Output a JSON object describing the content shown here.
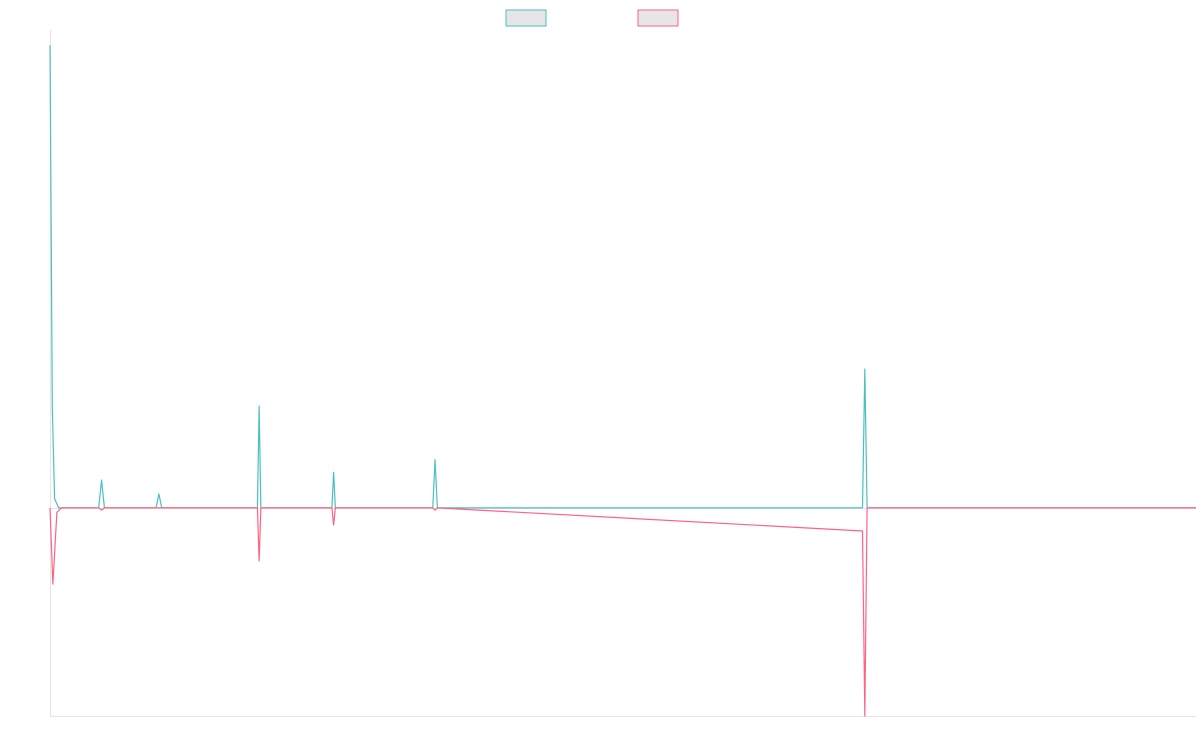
{
  "chart_data": {
    "type": "line",
    "title": "",
    "xlabel": "",
    "ylabel": "",
    "x_range": [
      0,
      200
    ],
    "ylim": [
      -0.45,
      1.02
    ],
    "grid": false,
    "legend_position": "top-center",
    "series": [
      {
        "legend_swatch": "teal-swatch",
        "color": "#4bc0c0",
        "fill": "#e6e6e6",
        "x": [
          0,
          0.4,
          0.8,
          1.5,
          2,
          8.5,
          9,
          9.5,
          18.5,
          19,
          19.5,
          36.2,
          36.5,
          36.8,
          49.2,
          49.5,
          49.8,
          66.8,
          67.2,
          67.6,
          141.8,
          142.2,
          142.6,
          200
        ],
        "y": [
          1.0,
          0.22,
          0.02,
          0.0,
          0.0,
          0.0,
          0.06,
          0.0,
          0.0,
          0.03,
          0.0,
          0.0,
          0.22,
          0.0,
          0.0,
          0.077,
          0.0,
          0.0,
          0.104,
          0.0,
          0.0,
          0.3,
          0.0,
          0.0
        ]
      },
      {
        "legend_swatch": "pink-swatch",
        "color": "#ff6384",
        "fill": "#e6e6e6",
        "x": [
          0,
          0.5,
          1.2,
          2,
          8.5,
          9,
          9.5,
          18.5,
          19,
          19.5,
          36.2,
          36.5,
          36.8,
          49.2,
          49.5,
          49.8,
          66.8,
          67.2,
          67.6,
          141.8,
          142.2,
          142.6,
          200
        ],
        "y": [
          0.0,
          -0.165,
          -0.01,
          0.0,
          0.0,
          -0.005,
          0.0,
          0.0,
          0.0,
          0.0,
          0.0,
          -0.115,
          0.0,
          0.0,
          -0.037,
          0.0,
          0.0,
          -0.005,
          0.0,
          -0.05,
          -0.45,
          0.0,
          0.0
        ]
      }
    ]
  }
}
